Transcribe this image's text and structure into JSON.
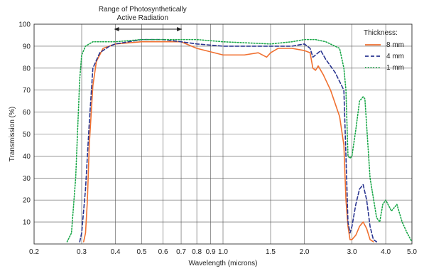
{
  "chart_data": {
    "type": "line",
    "title": "",
    "xlabel": "Wavelength (microns)",
    "ylabel": "Transmission (%)",
    "x_scale": "log",
    "xlim": [
      0.2,
      5.0
    ],
    "ylim": [
      0,
      100
    ],
    "x_ticks": [
      0.2,
      0.3,
      0.4,
      0.5,
      0.6,
      0.7,
      0.8,
      0.9,
      1.0,
      1.5,
      2.0,
      3.0,
      4.0,
      5.0
    ],
    "x_tick_labels": [
      "0.2",
      "0.3",
      "0.4",
      "0.5",
      "0.6",
      "0.7",
      "0.8",
      "0.9",
      "1.0",
      "1.5",
      "2.0",
      "3.0",
      "4.0",
      "5.0"
    ],
    "y_ticks": [
      10,
      20,
      30,
      40,
      50,
      60,
      70,
      80,
      90,
      100
    ],
    "y_tick_labels": [
      "10",
      "20",
      "30",
      "40",
      "50",
      "60",
      "70",
      "80",
      "90",
      "100"
    ],
    "grid": true,
    "legend": {
      "title": "Thickness:",
      "position": "top-right"
    },
    "annotation": {
      "lines": [
        "Range of Photosynthetically",
        "Active Radiation"
      ],
      "x_range": [
        0.4,
        0.7
      ]
    },
    "series": [
      {
        "name": "8 mm",
        "color": "#f07030",
        "style": "solid",
        "points": [
          [
            0.305,
            1
          ],
          [
            0.31,
            5
          ],
          [
            0.315,
            20
          ],
          [
            0.32,
            45
          ],
          [
            0.33,
            72
          ],
          [
            0.34,
            83
          ],
          [
            0.36,
            89
          ],
          [
            0.4,
            91
          ],
          [
            0.5,
            92
          ],
          [
            0.6,
            92
          ],
          [
            0.7,
            92
          ],
          [
            0.8,
            89
          ],
          [
            1.0,
            86
          ],
          [
            1.2,
            86
          ],
          [
            1.35,
            87
          ],
          [
            1.45,
            85
          ],
          [
            1.5,
            87
          ],
          [
            1.6,
            89
          ],
          [
            1.8,
            89
          ],
          [
            2.0,
            88
          ],
          [
            2.1,
            87
          ],
          [
            2.15,
            80
          ],
          [
            2.2,
            79
          ],
          [
            2.25,
            81
          ],
          [
            2.35,
            77
          ],
          [
            2.5,
            70
          ],
          [
            2.7,
            58
          ],
          [
            2.8,
            45
          ],
          [
            2.85,
            20
          ],
          [
            2.9,
            8
          ],
          [
            2.95,
            2
          ],
          [
            3.0,
            2
          ],
          [
            3.1,
            4
          ],
          [
            3.2,
            8
          ],
          [
            3.3,
            10
          ],
          [
            3.4,
            7
          ],
          [
            3.5,
            2
          ],
          [
            3.6,
            1
          ]
        ]
      },
      {
        "name": "4 mm",
        "color": "#2a3590",
        "style": "dashed",
        "points": [
          [
            0.295,
            1
          ],
          [
            0.3,
            5
          ],
          [
            0.31,
            25
          ],
          [
            0.32,
            55
          ],
          [
            0.33,
            80
          ],
          [
            0.35,
            87
          ],
          [
            0.38,
            90
          ],
          [
            0.4,
            91
          ],
          [
            0.5,
            93
          ],
          [
            0.6,
            93
          ],
          [
            0.7,
            92
          ],
          [
            0.8,
            91
          ],
          [
            1.0,
            90
          ],
          [
            1.5,
            90
          ],
          [
            1.8,
            90
          ],
          [
            2.0,
            91
          ],
          [
            2.1,
            89
          ],
          [
            2.15,
            85
          ],
          [
            2.2,
            86
          ],
          [
            2.3,
            88
          ],
          [
            2.4,
            84
          ],
          [
            2.6,
            78
          ],
          [
            2.8,
            70
          ],
          [
            2.85,
            40
          ],
          [
            2.9,
            10
          ],
          [
            2.95,
            5
          ],
          [
            3.0,
            8
          ],
          [
            3.1,
            18
          ],
          [
            3.2,
            25
          ],
          [
            3.3,
            27
          ],
          [
            3.4,
            20
          ],
          [
            3.5,
            8
          ],
          [
            3.6,
            2
          ],
          [
            3.7,
            1
          ]
        ]
      },
      {
        "name": "1 mm",
        "color": "#1ca84a",
        "style": "dotted",
        "points": [
          [
            0.265,
            1
          ],
          [
            0.275,
            5
          ],
          [
            0.285,
            30
          ],
          [
            0.295,
            75
          ],
          [
            0.3,
            86
          ],
          [
            0.31,
            90
          ],
          [
            0.33,
            92
          ],
          [
            0.4,
            92
          ],
          [
            0.5,
            93
          ],
          [
            0.6,
            93
          ],
          [
            0.7,
            93
          ],
          [
            0.8,
            93
          ],
          [
            1.0,
            92
          ],
          [
            1.5,
            91
          ],
          [
            1.8,
            92
          ],
          [
            2.0,
            93
          ],
          [
            2.2,
            93
          ],
          [
            2.4,
            92
          ],
          [
            2.7,
            89
          ],
          [
            2.8,
            80
          ],
          [
            2.85,
            70
          ],
          [
            2.9,
            40
          ],
          [
            2.95,
            39
          ],
          [
            3.0,
            40
          ],
          [
            3.1,
            52
          ],
          [
            3.2,
            65
          ],
          [
            3.3,
            67
          ],
          [
            3.35,
            66
          ],
          [
            3.5,
            30
          ],
          [
            3.7,
            12
          ],
          [
            3.8,
            10
          ],
          [
            3.9,
            18
          ],
          [
            4.0,
            20
          ],
          [
            4.2,
            15
          ],
          [
            4.4,
            18
          ],
          [
            4.6,
            10
          ],
          [
            4.8,
            5
          ],
          [
            5.0,
            1
          ]
        ]
      }
    ]
  }
}
